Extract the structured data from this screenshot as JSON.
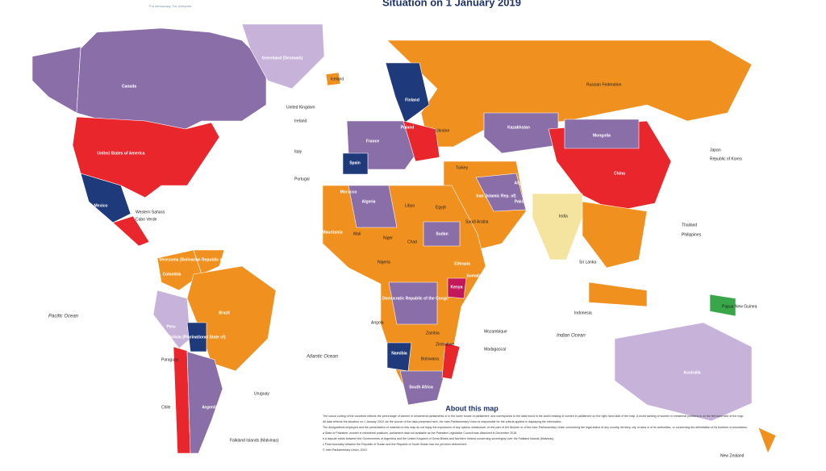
{
  "header": {
    "tagline": "For democracy. For everyone.",
    "title": "Situation on 1 January 2019"
  },
  "oceans": [
    "Pacific Ocean",
    "Atlantic Ocean",
    "Indian Ocean"
  ],
  "countries": [
    "Canada",
    "United States of America",
    "Mexico",
    "Greenland (Denmark)",
    "Iceland",
    "Brazil",
    "Colombia",
    "Peru",
    "Bolivia (Plurinational State of)",
    "Argentina",
    "Chile",
    "Venezuela (Bolivarian Republic of)",
    "Russian Federation",
    "China",
    "India",
    "Mongolia",
    "Kazakhstan",
    "Australia",
    "Algeria",
    "Libya",
    "Egypt",
    "Sudan",
    "Chad",
    "Niger",
    "Mali",
    "Mauritania",
    "Nigeria",
    "Ethiopia",
    "Somalia",
    "Kenya",
    "Democratic Republic of the Congo",
    "Angola",
    "Namibia",
    "Botswana",
    "South Africa",
    "Zambia",
    "Zimbabwe",
    "Saudi Arabia",
    "Iran (Islamic Rep. of)",
    "Afghanistan",
    "Pakistan",
    "Turkey",
    "Spain",
    "France",
    "Poland",
    "Finland",
    "Ukraine",
    "Morocco",
    "Papua New Guinea",
    "New Zealand",
    "Indonesia",
    "Japan",
    "Republic of Korea",
    "Thailand",
    "Philippines",
    "Sri Lanka",
    "Madagascar",
    "Mozambique",
    "Uruguay",
    "Paraguay",
    "Falkland Islands (Malvinas)",
    "Western Sahara",
    "Cabo Verde",
    "United Kingdom",
    "Ireland",
    "Italy",
    "Portugal"
  ],
  "about": {
    "title": "About this map",
    "paragraphs": [
      "The colour coding of the countries reflects the percentage of women in unicameral parliaments or in the lower house of parliament, and corresponds to the data found in the world ranking of women in parliament on the right-hand side of the map. A world ranking of women in ministerial positions is on the left-hand side of the map.",
      "All data reflects the situation on 1 January 2019. As the source of the data presented here, the Inter-Parliamentary Union is responsible for the criteria applied in displaying the information.",
      "The designations employed and the presentation of material on this map do not imply the expression of any opinion whatsoever on the part of UN Women or of the Inter-Parliamentary Union concerning the legal status of any country, territory, city or area or of its authorities, or concerning the delimitation of its frontiers or boundaries.",
      "a  State of Palestine: women in ministerial positions; parliament data not available as the Palestine Legislative Council was dissolved in December 2018.",
      "b  A dispute exists between the Governments of Argentina and the United Kingdom of Great Britain and Northern Ireland concerning sovereignty over the Falkland Islands (Malvinas).",
      "c  Final boundary between the Republic of Sudan and the Republic of South Sudan has not yet been determined.",
      "© Inter-Parliamentary Union, 2019"
    ]
  }
}
